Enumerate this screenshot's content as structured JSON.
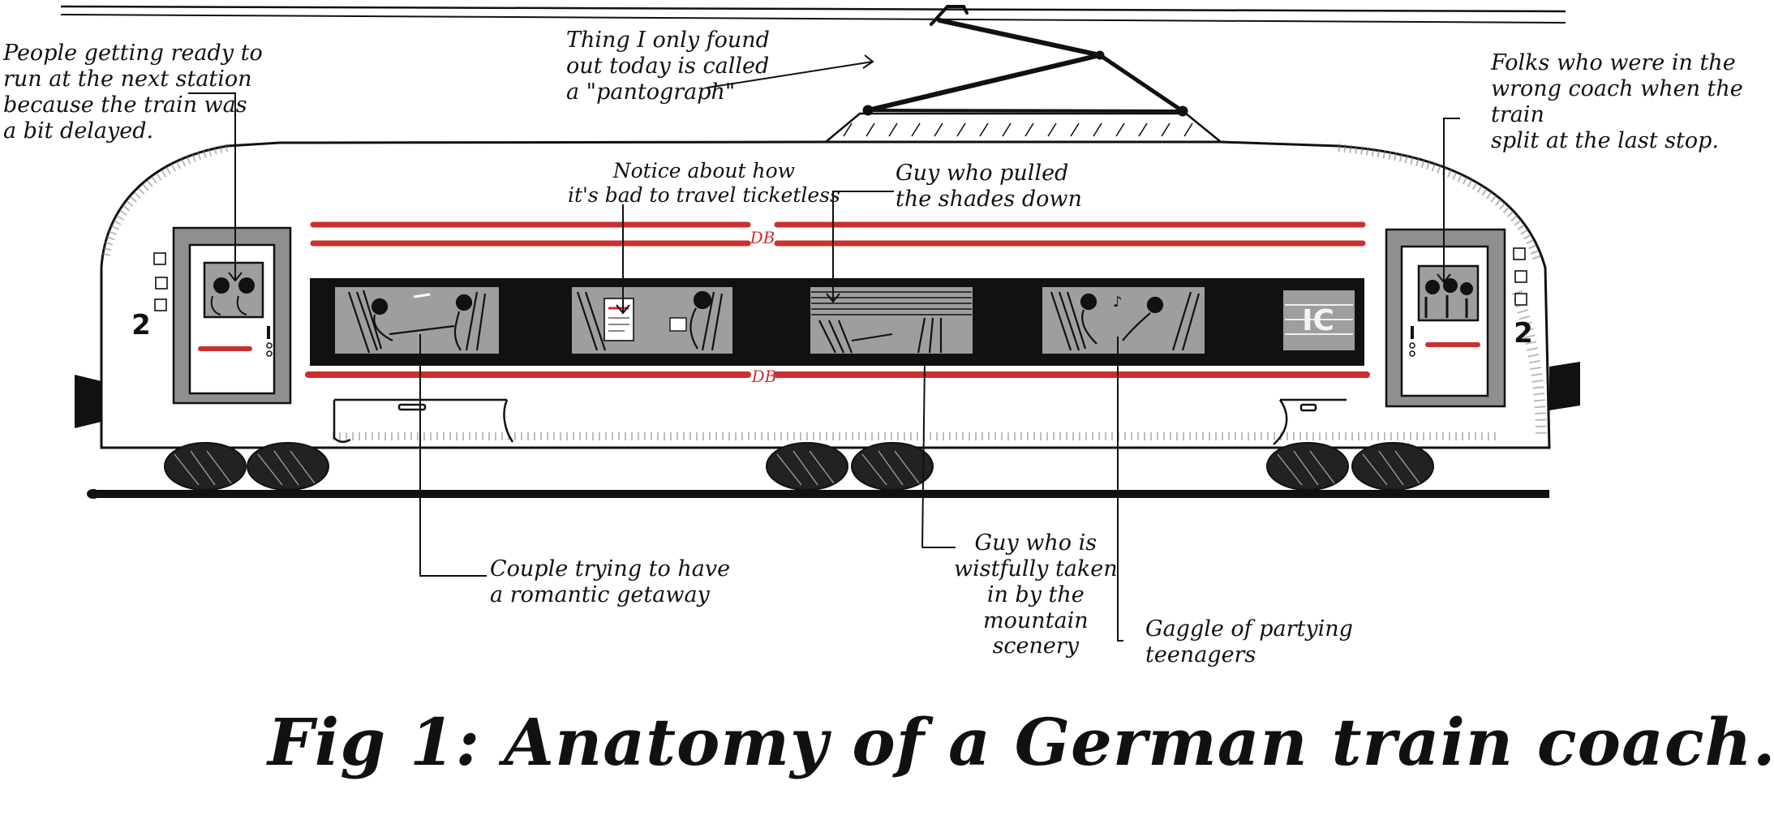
{
  "diagram": {
    "title": "Fig 1: Anatomy of a German train coach.",
    "brand_marks": {
      "operator": "DB",
      "service": "IC",
      "coach_class": "2"
    },
    "colors": {
      "ink": "#111111",
      "accent_red": "#cc2f2f",
      "window_grey": "#9e9e9e",
      "body_white": "#ffffff"
    },
    "annotations": {
      "waiting_passengers": "People getting ready to\nrun at the next station\nbecause the train was\na bit delayed.",
      "pantograph": "Thing I only found\nout today is called\na \"pantograph\"",
      "ticket_notice": "Notice about how\nit's bad to travel ticketless",
      "shades": "Guy who pulled\nthe shades down",
      "wrong_coach": "Folks who were in the\nwrong coach when the train\nsplit at the last stop.",
      "couple": "Couple trying to have\na romantic getaway",
      "mountain_guy": "Guy who is\nwistfully taken\nin by the\nmountain\nscenery",
      "teenagers": "Gaggle of partying\nteenagers"
    }
  }
}
